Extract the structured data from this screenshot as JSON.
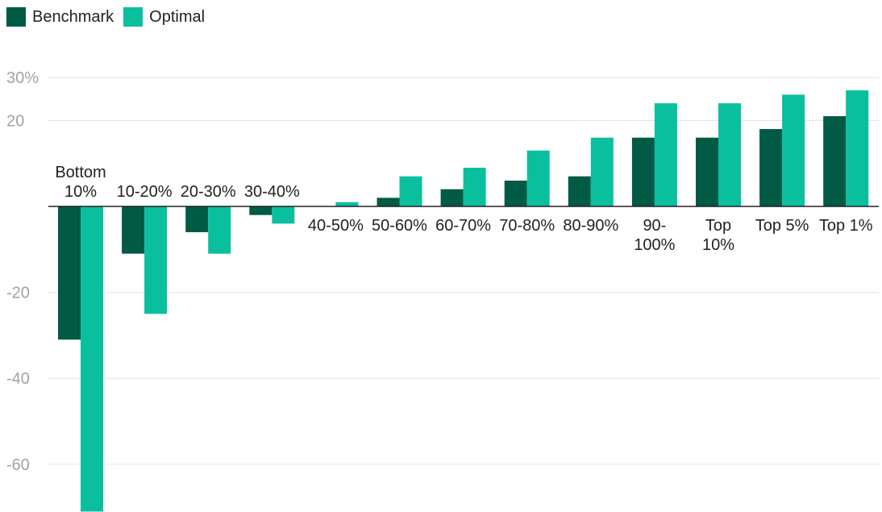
{
  "chart_data": {
    "type": "bar",
    "title": "",
    "xlabel": "",
    "ylabel": "",
    "ylim": [
      -70,
      30
    ],
    "y_ticks": [
      {
        "value": 30,
        "label": "30%"
      },
      {
        "value": 20,
        "label": "20"
      },
      {
        "value": -20,
        "label": "-20"
      },
      {
        "value": -40,
        "label": "-40"
      },
      {
        "value": -60,
        "label": "-60"
      }
    ],
    "grid": true,
    "legend_position": "top-left",
    "categories": [
      [
        "Bottom",
        "10%"
      ],
      [
        "10-20%"
      ],
      [
        "20-30%"
      ],
      [
        "30-40%"
      ],
      [
        "40-50%"
      ],
      [
        "50-60%"
      ],
      [
        "60-70%"
      ],
      [
        "70-80%"
      ],
      [
        "80-90%"
      ],
      [
        "90-",
        "100%"
      ],
      [
        "Top",
        "10%"
      ],
      [
        "Top 5%"
      ],
      [
        "Top 1%"
      ]
    ],
    "series": [
      {
        "name": "Benchmark",
        "color": "#005a44",
        "values": [
          -31,
          -11,
          -6,
          -2,
          0,
          2,
          4,
          6,
          7,
          16,
          16,
          18,
          21
        ]
      },
      {
        "name": "Optimal",
        "color": "#0abf9e",
        "values": [
          -71,
          -25,
          -11,
          -4,
          1,
          7,
          9,
          13,
          16,
          24,
          24,
          26,
          27
        ]
      }
    ]
  }
}
